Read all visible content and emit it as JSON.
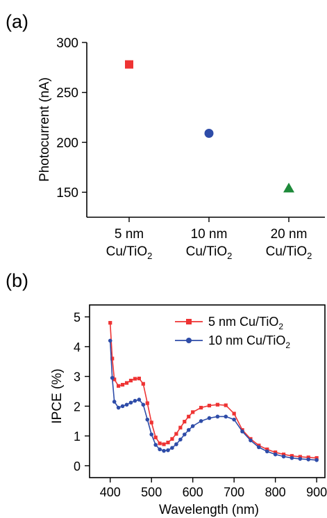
{
  "chart_data": [
    {
      "panel_label": "(a)",
      "type": "scatter",
      "ylabel": "Photocurrent (nA)",
      "ylim": [
        125,
        300
      ],
      "yticks": [
        150,
        200,
        250,
        300
      ],
      "categories": [
        {
          "line1": "5 nm",
          "line2_base": "Cu/TiO",
          "line2_sub": "2"
        },
        {
          "line1": "10 nm",
          "line2_base": "Cu/TiO",
          "line2_sub": "2"
        },
        {
          "line1": "20 nm",
          "line2_base": "Cu/TiO",
          "line2_sub": "2"
        }
      ],
      "points": [
        {
          "value": 278,
          "marker": "square",
          "color": "#ee3333"
        },
        {
          "value": 209,
          "marker": "circle",
          "color": "#2e4ca8"
        },
        {
          "value": 154,
          "marker": "triangle",
          "color": "#1e8a3a"
        }
      ]
    },
    {
      "panel_label": "(b)",
      "type": "line",
      "xlabel": "Wavelength (nm)",
      "ylabel": "IPCE (%)",
      "xlim": [
        350,
        920
      ],
      "ylim": [
        -0.4,
        5.4
      ],
      "xticks": [
        400,
        500,
        600,
        700,
        800,
        900
      ],
      "yticks": [
        0,
        1,
        2,
        3,
        4,
        5
      ],
      "legend_position": "top-right",
      "series": [
        {
          "legend_base": "5 nm Cu/TiO",
          "legend_sub": "2",
          "color": "#ee3333",
          "marker": "square",
          "x": [
            400,
            405,
            410,
            420,
            430,
            440,
            450,
            460,
            470,
            480,
            490,
            500,
            510,
            520,
            530,
            540,
            550,
            560,
            570,
            580,
            590,
            600,
            620,
            640,
            660,
            680,
            700,
            720,
            740,
            760,
            780,
            800,
            820,
            840,
            860,
            880,
            900
          ],
          "y": [
            4.8,
            3.6,
            2.9,
            2.68,
            2.72,
            2.78,
            2.86,
            2.92,
            2.93,
            2.75,
            2.1,
            1.45,
            0.95,
            0.75,
            0.72,
            0.78,
            0.9,
            1.07,
            1.28,
            1.48,
            1.65,
            1.8,
            1.95,
            2.02,
            2.05,
            2.03,
            1.75,
            1.2,
            0.9,
            0.68,
            0.55,
            0.45,
            0.38,
            0.33,
            0.3,
            0.28,
            0.26
          ]
        },
        {
          "legend_base": "10 nm Cu/TiO",
          "legend_sub": "2",
          "color": "#2e4ca8",
          "marker": "circle",
          "x": [
            400,
            405,
            410,
            420,
            430,
            440,
            450,
            460,
            470,
            480,
            490,
            500,
            510,
            520,
            530,
            540,
            550,
            560,
            570,
            580,
            590,
            600,
            620,
            640,
            660,
            680,
            700,
            720,
            740,
            760,
            780,
            800,
            820,
            840,
            860,
            880,
            900
          ],
          "y": [
            4.2,
            2.95,
            2.15,
            1.95,
            2.0,
            2.05,
            2.12,
            2.18,
            2.22,
            2.05,
            1.55,
            1.05,
            0.7,
            0.55,
            0.5,
            0.52,
            0.6,
            0.72,
            0.88,
            1.05,
            1.2,
            1.33,
            1.5,
            1.6,
            1.65,
            1.65,
            1.55,
            1.15,
            0.85,
            0.62,
            0.48,
            0.38,
            0.31,
            0.26,
            0.23,
            0.21,
            0.19
          ]
        }
      ]
    }
  ]
}
